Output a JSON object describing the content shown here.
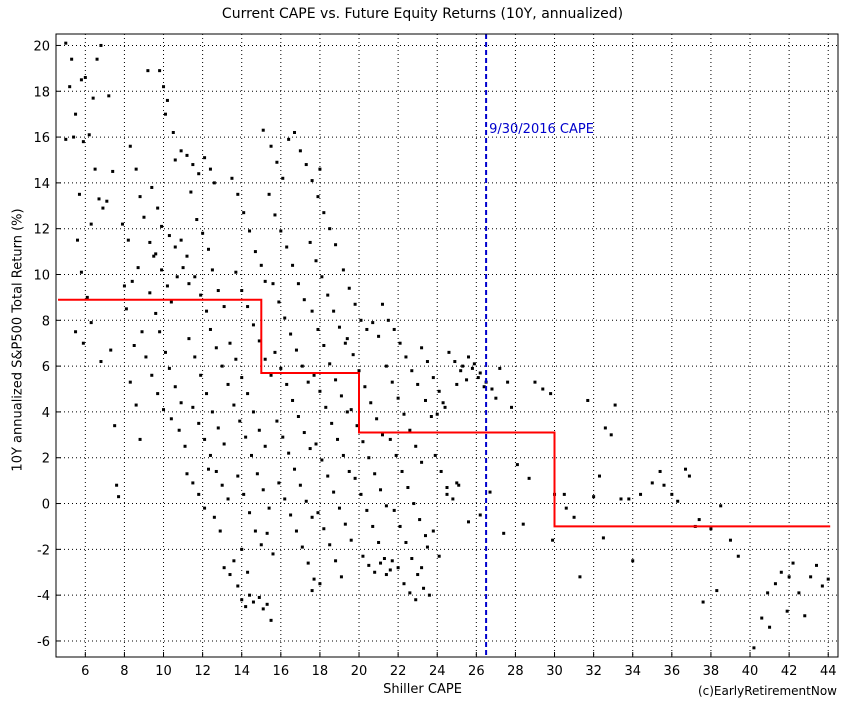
{
  "chart_data": {
    "type": "scatter",
    "title": "Current CAPE vs. Future Equity Returns (10Y, annualized)",
    "xlabel": "Shiller CAPE",
    "ylabel": "10Y annualized S&P500 Total Return (%)",
    "credit": "(c)EarlyRetirementNow",
    "xlim": [
      4.5,
      44.5
    ],
    "ylim": [
      -6.7,
      20.5
    ],
    "xticks": [
      6,
      8,
      10,
      12,
      14,
      16,
      18,
      20,
      22,
      24,
      26,
      28,
      30,
      32,
      34,
      36,
      38,
      40,
      42,
      44
    ],
    "yticks": [
      -6,
      -4,
      -2,
      0,
      2,
      4,
      6,
      8,
      10,
      12,
      14,
      16,
      18,
      20
    ],
    "grid": true,
    "series": [
      {
        "kind": "step-average",
        "color": "#ff0000",
        "x": [
          4.6,
          15,
          15,
          20,
          20,
          30,
          30,
          44.1
        ],
        "y": [
          8.9,
          8.9,
          5.7,
          5.7,
          3.1,
          3.1,
          -1.0,
          -1.0
        ]
      }
    ],
    "reference_lines": [
      {
        "x": 26.5,
        "label": "9/30/2016 CAPE",
        "label_y": 16.4,
        "color": "#0000cc",
        "style": "dashed"
      }
    ],
    "point_color": "#000000",
    "points": [
      [
        5.0,
        20.1
      ],
      [
        5.3,
        19.4
      ],
      [
        5.8,
        18.5
      ],
      [
        6.0,
        18.6
      ],
      [
        6.4,
        17.7
      ],
      [
        6.6,
        19.4
      ],
      [
        6.8,
        20.0
      ],
      [
        5.2,
        18.2
      ],
      [
        5.5,
        17.0
      ],
      [
        5.4,
        16.0
      ],
      [
        5.9,
        15.8
      ],
      [
        6.2,
        16.1
      ],
      [
        6.5,
        14.6
      ],
      [
        6.7,
        13.3
      ],
      [
        5.0,
        15.9
      ],
      [
        5.7,
        13.5
      ],
      [
        6.9,
        12.9
      ],
      [
        7.2,
        17.8
      ],
      [
        7.4,
        14.5
      ],
      [
        7.1,
        13.2
      ],
      [
        6.3,
        12.2
      ],
      [
        5.6,
        11.5
      ],
      [
        5.8,
        10.1
      ],
      [
        6.1,
        9.0
      ],
      [
        5.5,
        7.5
      ],
      [
        5.9,
        7.0
      ],
      [
        6.3,
        7.9
      ],
      [
        6.8,
        6.2
      ],
      [
        7.3,
        6.7
      ],
      [
        7.5,
        3.4
      ],
      [
        7.6,
        0.8
      ],
      [
        7.7,
        0.3
      ],
      [
        8.0,
        9.5
      ],
      [
        8.2,
        11.5
      ],
      [
        7.9,
        12.2
      ],
      [
        8.3,
        15.6
      ],
      [
        8.6,
        14.6
      ],
      [
        8.8,
        13.4
      ],
      [
        9.0,
        12.5
      ],
      [
        9.3,
        11.4
      ],
      [
        9.5,
        10.8
      ],
      [
        8.7,
        10.3
      ],
      [
        8.4,
        9.7
      ],
      [
        8.1,
        8.5
      ],
      [
        8.9,
        7.5
      ],
      [
        8.5,
        6.9
      ],
      [
        8.3,
        5.3
      ],
      [
        8.6,
        4.3
      ],
      [
        8.8,
        2.8
      ],
      [
        9.2,
        18.9
      ],
      [
        9.8,
        18.9
      ],
      [
        10.0,
        18.2
      ],
      [
        10.2,
        17.6
      ],
      [
        10.1,
        17.0
      ],
      [
        10.5,
        16.2
      ],
      [
        10.6,
        15.0
      ],
      [
        9.4,
        13.8
      ],
      [
        9.7,
        12.9
      ],
      [
        9.9,
        12.1
      ],
      [
        10.3,
        11.7
      ],
      [
        10.6,
        11.2
      ],
      [
        10.9,
        11.5
      ],
      [
        11.2,
        10.8
      ],
      [
        9.6,
        10.9
      ],
      [
        9.9,
        10.2
      ],
      [
        10.2,
        9.5
      ],
      [
        10.4,
        8.8
      ],
      [
        10.7,
        9.9
      ],
      [
        11.0,
        10.3
      ],
      [
        11.3,
        9.6
      ],
      [
        9.3,
        9.2
      ],
      [
        9.6,
        8.3
      ],
      [
        9.8,
        7.5
      ],
      [
        10.1,
        6.6
      ],
      [
        10.3,
        5.9
      ],
      [
        10.6,
        5.1
      ],
      [
        10.9,
        4.4
      ],
      [
        9.1,
        6.4
      ],
      [
        9.4,
        5.6
      ],
      [
        9.7,
        4.8
      ],
      [
        10.0,
        4.1
      ],
      [
        10.4,
        3.7
      ],
      [
        10.8,
        3.2
      ],
      [
        11.1,
        2.5
      ],
      [
        10.9,
        15.4
      ],
      [
        11.2,
        15.2
      ],
      [
        11.5,
        14.8
      ],
      [
        11.8,
        14.4
      ],
      [
        12.1,
        15.1
      ],
      [
        12.4,
        14.6
      ],
      [
        12.6,
        14.0
      ],
      [
        11.4,
        13.6
      ],
      [
        11.7,
        12.4
      ],
      [
        12.0,
        11.8
      ],
      [
        12.3,
        11.1
      ],
      [
        12.5,
        10.2
      ],
      [
        12.8,
        9.3
      ],
      [
        13.1,
        8.6
      ],
      [
        11.6,
        9.9
      ],
      [
        11.9,
        9.1
      ],
      [
        12.2,
        8.4
      ],
      [
        12.4,
        7.6
      ],
      [
        12.7,
        6.8
      ],
      [
        13.0,
        6.0
      ],
      [
        13.3,
        5.2
      ],
      [
        11.3,
        7.2
      ],
      [
        11.6,
        6.4
      ],
      [
        11.9,
        5.6
      ],
      [
        12.2,
        4.8
      ],
      [
        12.5,
        4.0
      ],
      [
        12.8,
        3.3
      ],
      [
        13.1,
        2.6
      ],
      [
        11.5,
        4.2
      ],
      [
        11.8,
        3.5
      ],
      [
        12.1,
        2.8
      ],
      [
        12.4,
        2.1
      ],
      [
        12.7,
        1.4
      ],
      [
        13.0,
        0.8
      ],
      [
        13.3,
        0.2
      ],
      [
        11.2,
        1.3
      ],
      [
        11.5,
        0.9
      ],
      [
        11.8,
        0.4
      ],
      [
        12.1,
        -0.2
      ],
      [
        12.3,
        1.5
      ],
      [
        12.6,
        -0.6
      ],
      [
        12.9,
        -1.2
      ],
      [
        13.1,
        -2.8
      ],
      [
        13.4,
        -3.1
      ],
      [
        13.6,
        -2.5
      ],
      [
        13.8,
        -3.6
      ],
      [
        14.0,
        -4.2
      ],
      [
        14.2,
        -4.5
      ],
      [
        14.4,
        -4.0
      ],
      [
        13.5,
        14.2
      ],
      [
        13.8,
        13.5
      ],
      [
        14.1,
        12.7
      ],
      [
        14.4,
        11.9
      ],
      [
        14.7,
        11.0
      ],
      [
        15.0,
        10.4
      ],
      [
        15.2,
        9.7
      ],
      [
        13.7,
        10.1
      ],
      [
        14.0,
        9.3
      ],
      [
        14.3,
        8.6
      ],
      [
        14.6,
        7.8
      ],
      [
        14.9,
        7.1
      ],
      [
        15.2,
        6.3
      ],
      [
        15.5,
        5.6
      ],
      [
        13.4,
        7.0
      ],
      [
        13.7,
        6.3
      ],
      [
        14.0,
        5.5
      ],
      [
        14.3,
        4.8
      ],
      [
        14.6,
        4.0
      ],
      [
        14.9,
        3.2
      ],
      [
        15.2,
        2.5
      ],
      [
        13.6,
        4.3
      ],
      [
        13.9,
        3.6
      ],
      [
        14.2,
        2.9
      ],
      [
        14.5,
        2.1
      ],
      [
        14.8,
        1.3
      ],
      [
        15.1,
        0.6
      ],
      [
        15.4,
        -0.2
      ],
      [
        13.8,
        1.2
      ],
      [
        14.1,
        0.4
      ],
      [
        14.4,
        -0.4
      ],
      [
        14.7,
        -1.2
      ],
      [
        15.0,
        -1.8
      ],
      [
        15.3,
        -1.3
      ],
      [
        15.6,
        -2.2
      ],
      [
        14.6,
        -4.3
      ],
      [
        14.9,
        -4.1
      ],
      [
        15.1,
        -4.6
      ],
      [
        15.3,
        -4.4
      ],
      [
        15.5,
        -5.1
      ],
      [
        14.0,
        -2.0
      ],
      [
        14.3,
        -3.0
      ],
      [
        15.1,
        16.3
      ],
      [
        15.5,
        15.6
      ],
      [
        15.8,
        14.9
      ],
      [
        16.1,
        14.2
      ],
      [
        16.4,
        15.9
      ],
      [
        16.7,
        16.2
      ],
      [
        17.0,
        15.4
      ],
      [
        15.4,
        13.5
      ],
      [
        15.7,
        12.6
      ],
      [
        16.0,
        11.9
      ],
      [
        16.3,
        11.2
      ],
      [
        16.6,
        10.4
      ],
      [
        16.9,
        9.6
      ],
      [
        17.2,
        8.9
      ],
      [
        15.6,
        9.6
      ],
      [
        15.9,
        8.8
      ],
      [
        16.2,
        8.1
      ],
      [
        16.5,
        7.4
      ],
      [
        16.8,
        6.7
      ],
      [
        17.1,
        6.0
      ],
      [
        17.4,
        5.3
      ],
      [
        15.7,
        6.6
      ],
      [
        16.0,
        5.9
      ],
      [
        16.3,
        5.2
      ],
      [
        16.6,
        4.5
      ],
      [
        16.9,
        3.8
      ],
      [
        17.2,
        3.1
      ],
      [
        17.5,
        2.4
      ],
      [
        15.8,
        3.6
      ],
      [
        16.1,
        2.9
      ],
      [
        16.4,
        2.2
      ],
      [
        16.7,
        1.5
      ],
      [
        17.0,
        0.8
      ],
      [
        17.3,
        0.1
      ],
      [
        17.6,
        -0.6
      ],
      [
        15.9,
        0.9
      ],
      [
        16.2,
        0.2
      ],
      [
        16.5,
        -0.5
      ],
      [
        16.8,
        -1.2
      ],
      [
        17.1,
        -1.9
      ],
      [
        17.4,
        -2.6
      ],
      [
        17.7,
        -3.3
      ],
      [
        17.3,
        14.8
      ],
      [
        17.6,
        14.1
      ],
      [
        17.9,
        13.4
      ],
      [
        18.2,
        12.7
      ],
      [
        18.0,
        14.6
      ],
      [
        18.5,
        12.0
      ],
      [
        18.8,
        11.3
      ],
      [
        17.5,
        11.4
      ],
      [
        17.8,
        10.6
      ],
      [
        18.1,
        9.9
      ],
      [
        18.4,
        9.1
      ],
      [
        18.7,
        8.4
      ],
      [
        19.0,
        7.7
      ],
      [
        19.3,
        7.0
      ],
      [
        17.6,
        8.4
      ],
      [
        17.9,
        7.6
      ],
      [
        18.2,
        6.9
      ],
      [
        18.5,
        6.1
      ],
      [
        18.8,
        5.4
      ],
      [
        19.1,
        4.7
      ],
      [
        19.4,
        4.0
      ],
      [
        17.7,
        5.6
      ],
      [
        18.0,
        4.9
      ],
      [
        18.3,
        4.2
      ],
      [
        18.6,
        3.5
      ],
      [
        18.9,
        2.8
      ],
      [
        19.2,
        2.1
      ],
      [
        19.5,
        1.4
      ],
      [
        17.8,
        2.6
      ],
      [
        18.1,
        1.9
      ],
      [
        18.4,
        1.2
      ],
      [
        18.7,
        0.5
      ],
      [
        19.0,
        -0.2
      ],
      [
        19.3,
        -0.9
      ],
      [
        19.6,
        -1.6
      ],
      [
        17.9,
        -0.4
      ],
      [
        18.2,
        -1.1
      ],
      [
        18.5,
        -1.8
      ],
      [
        18.8,
        -2.5
      ],
      [
        19.1,
        -3.2
      ],
      [
        17.6,
        -3.8
      ],
      [
        18.0,
        -3.5
      ],
      [
        19.2,
        10.2
      ],
      [
        19.5,
        9.4
      ],
      [
        19.8,
        8.7
      ],
      [
        20.1,
        8.0
      ],
      [
        20.4,
        7.6
      ],
      [
        20.7,
        7.9
      ],
      [
        21.0,
        7.3
      ],
      [
        19.4,
        7.2
      ],
      [
        19.7,
        6.5
      ],
      [
        20.0,
        5.8
      ],
      [
        20.3,
        5.1
      ],
      [
        20.6,
        4.4
      ],
      [
        20.9,
        3.7
      ],
      [
        21.2,
        3.0
      ],
      [
        19.6,
        4.1
      ],
      [
        19.9,
        3.4
      ],
      [
        20.2,
        2.7
      ],
      [
        20.5,
        2.0
      ],
      [
        20.8,
        1.3
      ],
      [
        21.1,
        0.6
      ],
      [
        21.4,
        -0.1
      ],
      [
        19.8,
        1.1
      ],
      [
        20.1,
        0.4
      ],
      [
        20.4,
        -0.3
      ],
      [
        20.7,
        -1.0
      ],
      [
        21.0,
        -1.7
      ],
      [
        21.3,
        -2.4
      ],
      [
        21.6,
        -2.9
      ],
      [
        20.2,
        -2.3
      ],
      [
        20.5,
        -2.7
      ],
      [
        20.8,
        -3.0
      ],
      [
        21.1,
        -2.6
      ],
      [
        21.4,
        -3.1
      ],
      [
        21.7,
        -2.5
      ],
      [
        22.0,
        -2.8
      ],
      [
        21.2,
        8.7
      ],
      [
        21.5,
        8.0
      ],
      [
        21.8,
        7.6
      ],
      [
        22.1,
        7.0
      ],
      [
        22.4,
        6.4
      ],
      [
        22.7,
        5.8
      ],
      [
        23.0,
        5.2
      ],
      [
        21.4,
        6.0
      ],
      [
        21.7,
        5.3
      ],
      [
        22.0,
        4.6
      ],
      [
        22.3,
        3.9
      ],
      [
        22.6,
        3.2
      ],
      [
        22.9,
        2.5
      ],
      [
        23.2,
        1.8
      ],
      [
        21.6,
        2.8
      ],
      [
        21.9,
        2.1
      ],
      [
        22.2,
        1.4
      ],
      [
        22.5,
        0.7
      ],
      [
        22.8,
        0.0
      ],
      [
        23.1,
        -0.7
      ],
      [
        23.4,
        -1.4
      ],
      [
        21.8,
        -0.3
      ],
      [
        22.1,
        -1.0
      ],
      [
        22.4,
        -1.7
      ],
      [
        22.7,
        -2.4
      ],
      [
        23.0,
        -3.1
      ],
      [
        23.3,
        -3.7
      ],
      [
        23.6,
        -4.0
      ],
      [
        22.3,
        -3.5
      ],
      [
        22.6,
        -3.9
      ],
      [
        22.9,
        -4.2
      ],
      [
        23.2,
        -2.8
      ],
      [
        23.5,
        -1.9
      ],
      [
        23.8,
        -1.2
      ],
      [
        24.1,
        -2.3
      ],
      [
        23.2,
        6.8
      ],
      [
        23.5,
        6.2
      ],
      [
        23.8,
        5.5
      ],
      [
        24.1,
        4.9
      ],
      [
        24.4,
        4.2
      ],
      [
        23.4,
        4.5
      ],
      [
        23.7,
        3.8
      ],
      [
        24.0,
        3.9
      ],
      [
        24.3,
        4.4
      ],
      [
        23.9,
        2.1
      ],
      [
        24.2,
        1.4
      ],
      [
        24.5,
        0.7
      ],
      [
        24.8,
        0.2
      ],
      [
        25.1,
        0.8
      ],
      [
        24.6,
        6.6
      ],
      [
        24.9,
        6.2
      ],
      [
        25.2,
        5.8
      ],
      [
        25.5,
        5.4
      ],
      [
        25.8,
        5.9
      ],
      [
        26.1,
        5.5
      ],
      [
        26.4,
        5.1
      ],
      [
        25.0,
        5.2
      ],
      [
        25.3,
        6.0
      ],
      [
        25.6,
        6.4
      ],
      [
        25.9,
        6.1
      ],
      [
        26.2,
        5.7
      ],
      [
        26.5,
        5.3
      ],
      [
        26.8,
        5.0
      ],
      [
        24.5,
        0.4
      ],
      [
        25.0,
        0.9
      ],
      [
        25.6,
        -0.8
      ],
      [
        26.2,
        -0.5
      ],
      [
        26.7,
        0.5
      ],
      [
        27.4,
        -1.3
      ],
      [
        27.0,
        4.6
      ],
      [
        27.2,
        5.9
      ],
      [
        27.6,
        5.3
      ],
      [
        27.8,
        4.2
      ],
      [
        28.1,
        1.7
      ],
      [
        28.4,
        -0.9
      ],
      [
        28.7,
        1.1
      ],
      [
        29.0,
        5.3
      ],
      [
        29.4,
        5.0
      ],
      [
        29.8,
        4.8
      ],
      [
        30.0,
        0.4
      ],
      [
        29.9,
        -1.6
      ],
      [
        30.6,
        -0.2
      ],
      [
        31.0,
        -0.6
      ],
      [
        31.3,
        -3.2
      ],
      [
        31.7,
        4.5
      ],
      [
        32.0,
        0.3
      ],
      [
        32.3,
        1.2
      ],
      [
        32.5,
        -1.5
      ],
      [
        32.6,
        3.3
      ],
      [
        32.9,
        3.0
      ],
      [
        33.1,
        4.3
      ],
      [
        33.4,
        0.2
      ],
      [
        33.8,
        0.2
      ],
      [
        34.0,
        -2.5
      ],
      [
        34.4,
        0.4
      ],
      [
        35.0,
        0.9
      ],
      [
        35.6,
        0.8
      ],
      [
        36.0,
        0.4
      ],
      [
        36.3,
        0.1
      ],
      [
        36.9,
        1.2
      ],
      [
        37.2,
        -1.0
      ],
      [
        37.4,
        -0.7
      ],
      [
        37.6,
        -4.3
      ],
      [
        38.0,
        -1.1
      ],
      [
        38.3,
        -3.8
      ],
      [
        38.5,
        -0.1
      ],
      [
        39.0,
        -1.6
      ],
      [
        39.4,
        -2.3
      ],
      [
        40.2,
        -6.3
      ],
      [
        40.6,
        -5.0
      ],
      [
        41.0,
        -5.4
      ],
      [
        41.3,
        -3.5
      ],
      [
        41.6,
        -3.0
      ],
      [
        41.9,
        -4.7
      ],
      [
        42.2,
        -2.6
      ],
      [
        42.5,
        -3.9
      ],
      [
        42.8,
        -4.9
      ],
      [
        43.1,
        -3.2
      ],
      [
        43.4,
        -2.7
      ],
      [
        43.7,
        -3.6
      ],
      [
        44.0,
        -3.3
      ],
      [
        40.9,
        -3.9
      ],
      [
        42.0,
        -3.2
      ],
      [
        36.7,
        1.5
      ],
      [
        35.4,
        1.4
      ],
      [
        30.5,
        0.4
      ]
    ]
  }
}
